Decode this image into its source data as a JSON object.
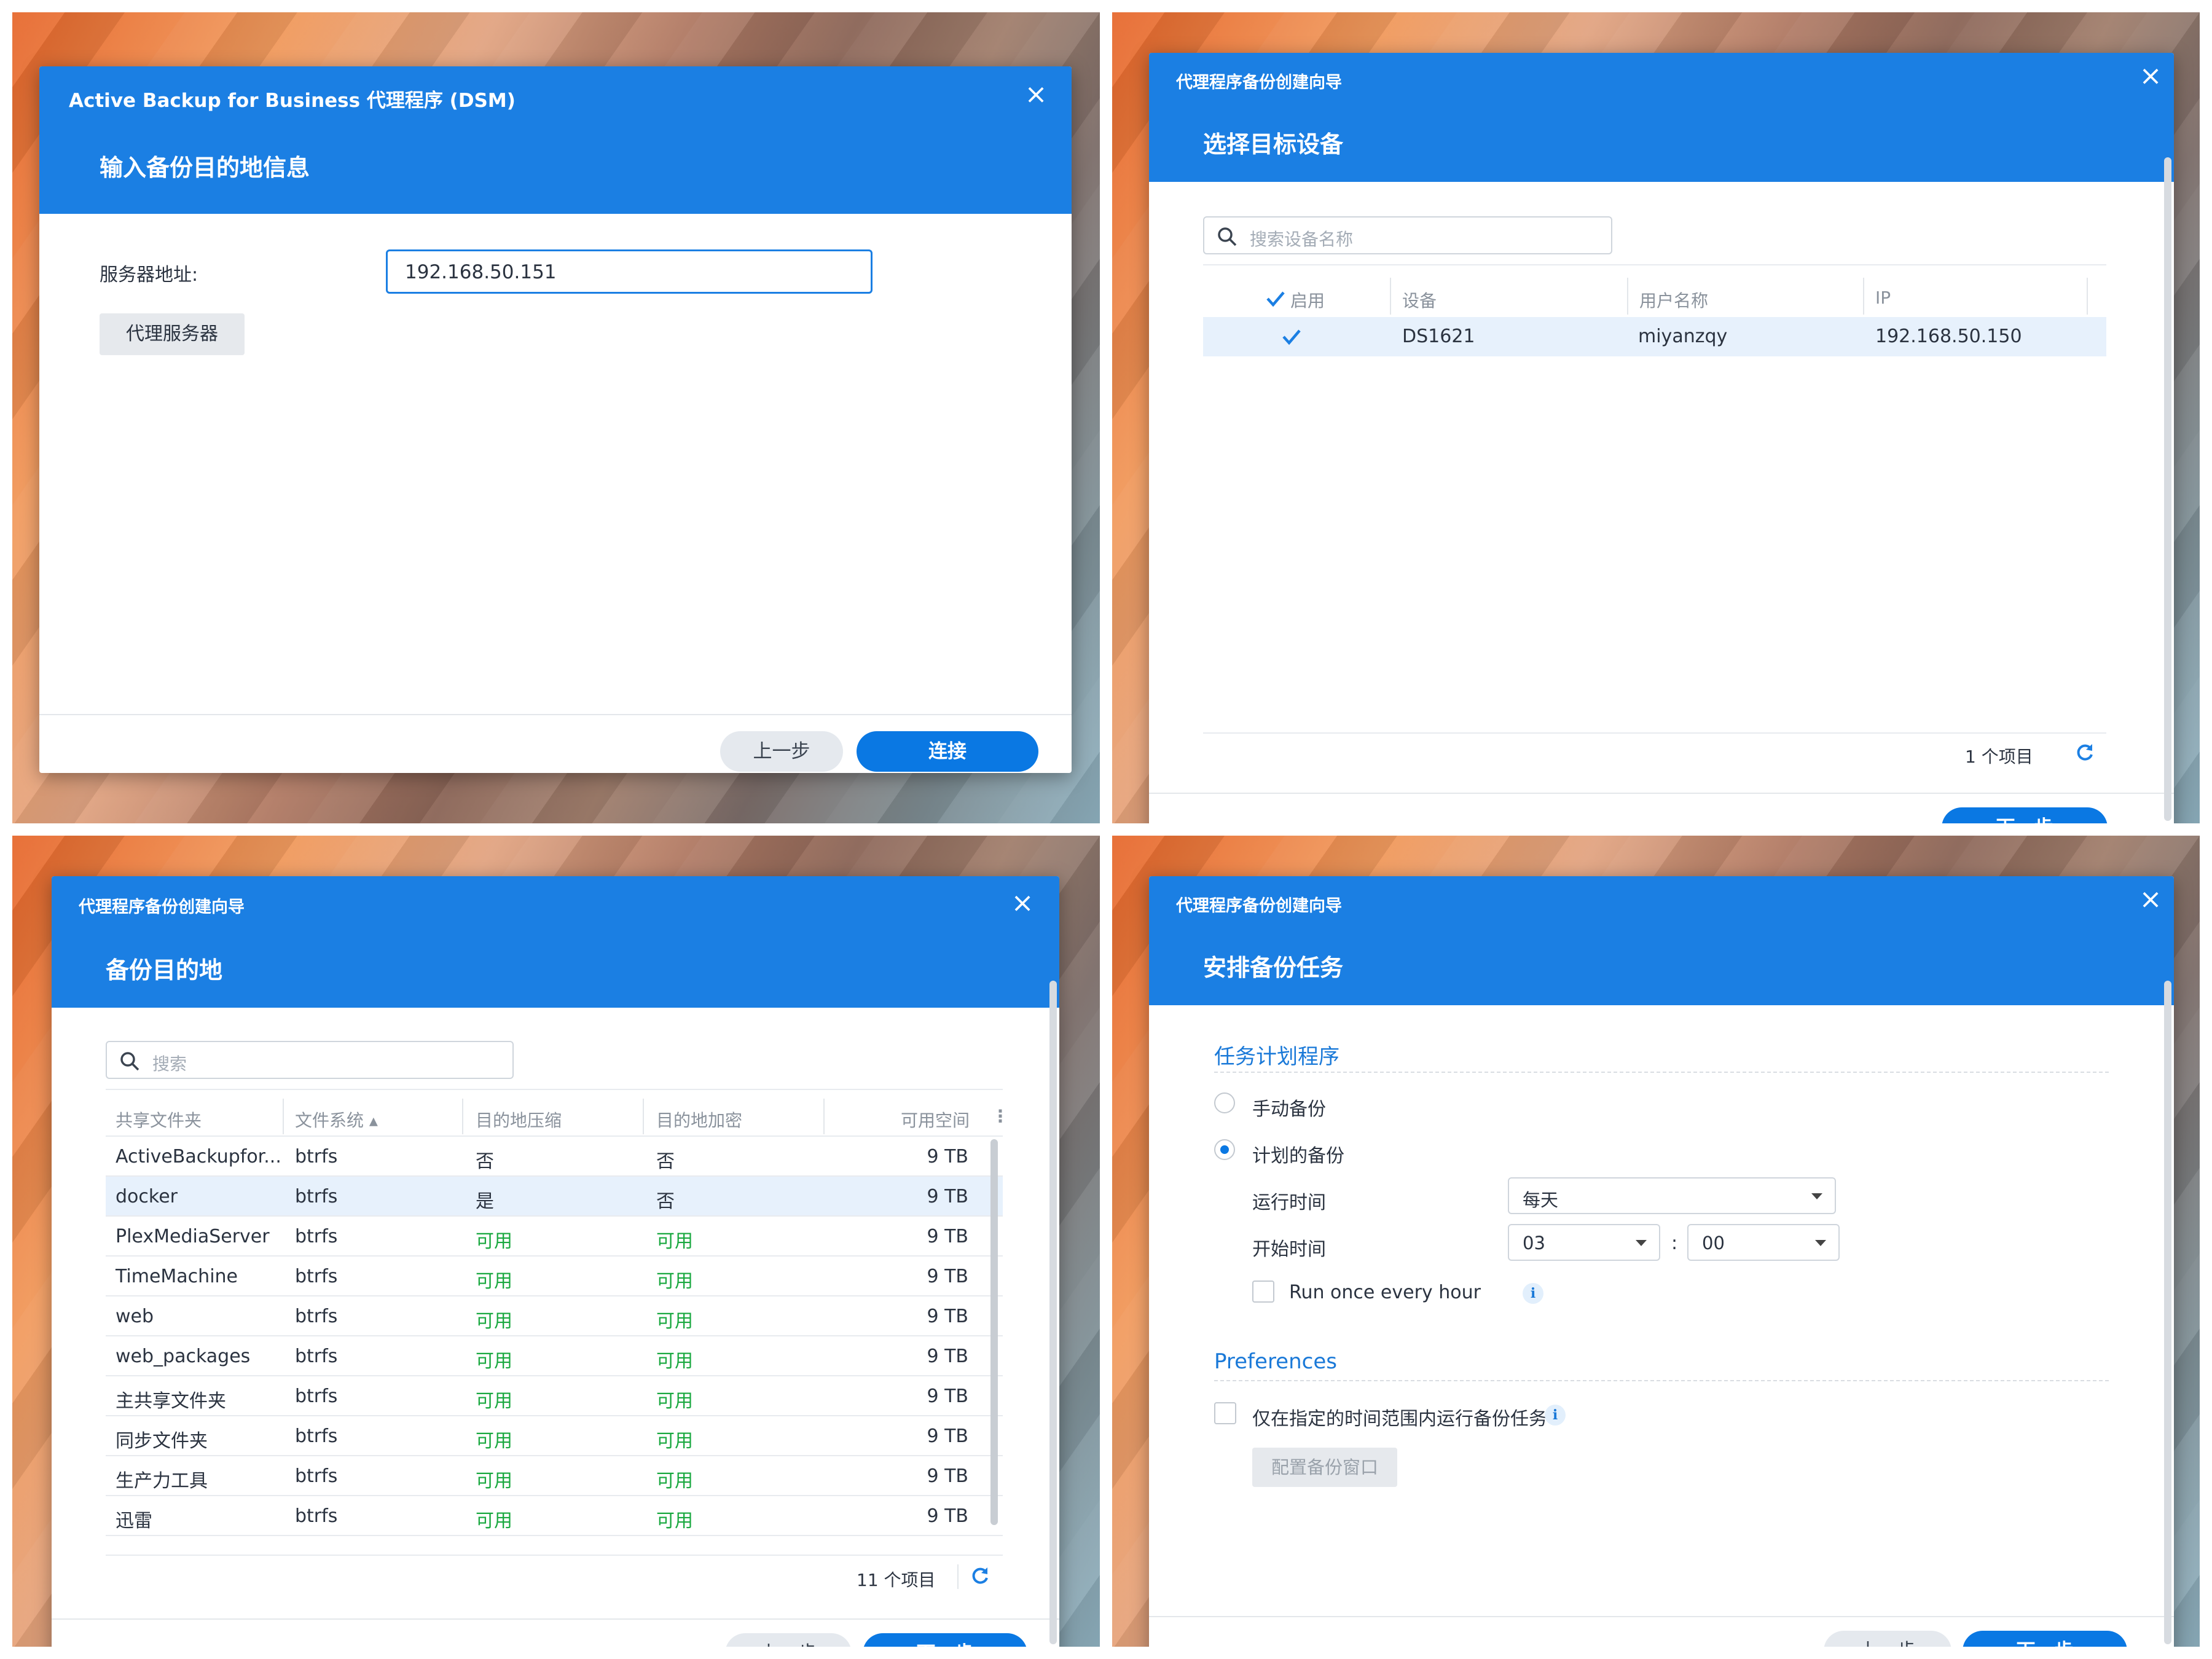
{
  "panel1": {
    "window_title": "Active Backup for Business 代理程序 (DSM)",
    "heading": "输入备份目的地信息",
    "server_label": "服务器地址:",
    "server_value": "192.168.50.151",
    "proxy_button": "代理服务器",
    "back_button": "上一步",
    "connect_button": "连接"
  },
  "panel2": {
    "window_title": "代理程序备份创建向导",
    "heading": "选择目标设备",
    "search_placeholder": "搜索设备名称",
    "columns": [
      "启用",
      "设备",
      "用户名称",
      "IP"
    ],
    "rows": [
      {
        "enabled": true,
        "device": "DS1621",
        "user": "miyanzqy",
        "ip": "192.168.50.150"
      }
    ],
    "item_count": "1 个项目",
    "next_button": "下一步"
  },
  "panel3": {
    "window_title": "代理程序备份创建向导",
    "heading": "备份目的地",
    "search_placeholder": "搜索",
    "columns": [
      "共享文件夹",
      "文件系统 ▴",
      "目的地压缩",
      "目的地加密",
      "可用空间"
    ],
    "rows": [
      {
        "folder": "ActiveBackupfor...",
        "fs": "btrfs",
        "compress": "否",
        "encrypt": "否",
        "space": "9 TB"
      },
      {
        "folder": "docker",
        "fs": "btrfs",
        "compress": "是",
        "encrypt": "否",
        "space": "9 TB"
      },
      {
        "folder": "PlexMediaServer",
        "fs": "btrfs",
        "compress": "可用",
        "encrypt": "可用",
        "space": "9 TB"
      },
      {
        "folder": "TimeMachine",
        "fs": "btrfs",
        "compress": "可用",
        "encrypt": "可用",
        "space": "9 TB"
      },
      {
        "folder": "web",
        "fs": "btrfs",
        "compress": "可用",
        "encrypt": "可用",
        "space": "9 TB"
      },
      {
        "folder": "web_packages",
        "fs": "btrfs",
        "compress": "可用",
        "encrypt": "可用",
        "space": "9 TB"
      },
      {
        "folder": "主共享文件夹",
        "fs": "btrfs",
        "compress": "可用",
        "encrypt": "可用",
        "space": "9 TB"
      },
      {
        "folder": "同步文件夹",
        "fs": "btrfs",
        "compress": "可用",
        "encrypt": "可用",
        "space": "9 TB"
      },
      {
        "folder": "生产力工具",
        "fs": "btrfs",
        "compress": "可用",
        "encrypt": "可用",
        "space": "9 TB"
      },
      {
        "folder": "迅雷",
        "fs": "btrfs",
        "compress": "可用",
        "encrypt": "可用",
        "space": "9 TB"
      }
    ],
    "item_count": "11 个项目",
    "back_button": "上一步",
    "next_button": "下一步"
  },
  "panel4": {
    "window_title": "代理程序备份创建向导",
    "heading": "安排备份任务",
    "section_scheduler": "任务计划程序",
    "manual_backup": "手动备份",
    "scheduled_backup": "计划的备份",
    "run_time_label": "运行时间",
    "run_time_value": "每天",
    "start_time_label": "开始时间",
    "start_hour": "03",
    "time_sep": ":",
    "start_minute": "00",
    "run_hourly": "Run once every hour",
    "section_preferences": "Preferences",
    "window_only": "仅在指定的时间范围内运行备份任务",
    "config_window_button": "配置备份窗口",
    "back_button": "上一步",
    "next_button": "下一步"
  },
  "colors": {
    "accent": "#1b7fe3",
    "button_blue": "#0a78e3",
    "available_green": "#19a83f"
  },
  "icons": [
    "close-icon",
    "search-icon",
    "checkmark-icon",
    "refresh-icon",
    "info-icon",
    "chevron-down-icon"
  ]
}
